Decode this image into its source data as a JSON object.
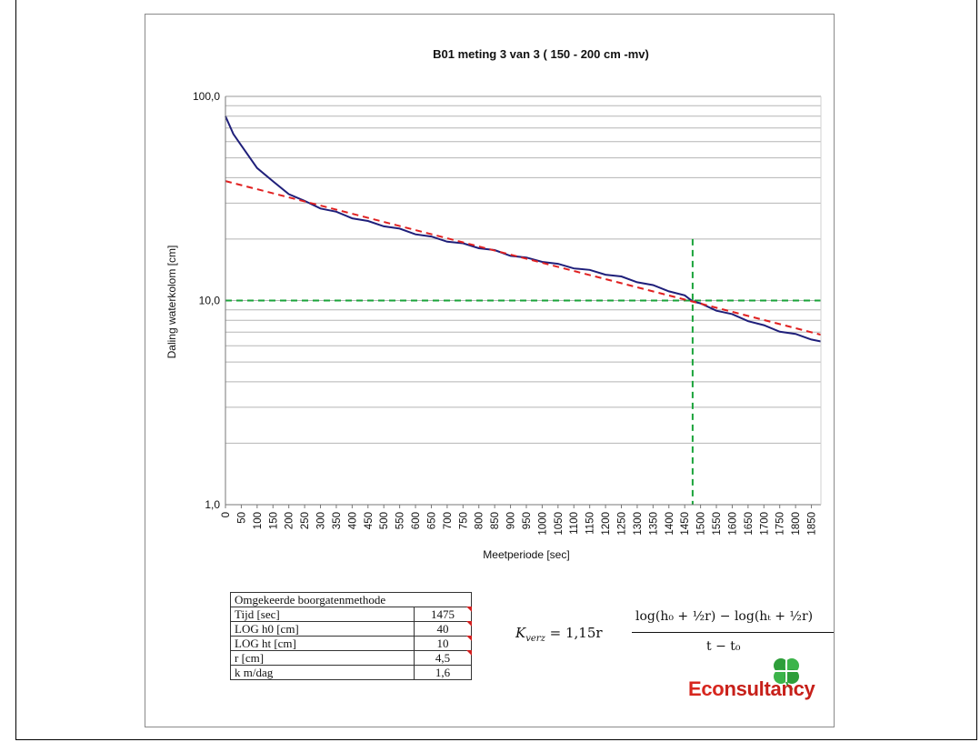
{
  "chart_data": {
    "type": "line",
    "title": "B01 meting 3 van 3 ( 150 - 200 cm -mv)",
    "xlabel": "Meetperiode [sec]",
    "ylabel": "Daling waterkolom [cm]",
    "yscale": "log",
    "ylim": [
      1,
      100
    ],
    "xlim": [
      0,
      1880
    ],
    "x_ticks": [
      "0",
      "50",
      "100",
      "150",
      "200",
      "250",
      "300",
      "350",
      "400",
      "450",
      "500",
      "550",
      "600",
      "650",
      "700",
      "750",
      "800",
      "850",
      "900",
      "950",
      "1000",
      "1050",
      "1100",
      "1150",
      "1200",
      "1250",
      "1300",
      "1350",
      "1400",
      "1450",
      "1500",
      "1550",
      "1600",
      "1650",
      "1700",
      "1750",
      "1800",
      "1850"
    ],
    "y_tick_labels": [
      "1,0",
      "10,0",
      "100,0"
    ],
    "grid": "horizontal",
    "series": [
      {
        "color": "#1f1f7a",
        "style": "solid",
        "x": [
          0,
          25,
          50,
          100,
          150,
          200,
          250,
          300,
          350,
          400,
          450,
          500,
          550,
          600,
          650,
          700,
          750,
          800,
          850,
          900,
          950,
          1000,
          1050,
          1100,
          1150,
          1200,
          1250,
          1300,
          1350,
          1400,
          1450,
          1475,
          1500,
          1550,
          1600,
          1650,
          1700,
          1750,
          1800,
          1850,
          1880
        ],
        "y": [
          80,
          66,
          57,
          45,
          38,
          33.5,
          30.5,
          28.5,
          27,
          25.5,
          24.3,
          23.3,
          22.3,
          21.3,
          20.4,
          19.6,
          18.9,
          18.2,
          17.5,
          16.7,
          16.1,
          15.6,
          15.0,
          14.5,
          14.0,
          13.5,
          13.0,
          12.4,
          11.8,
          11.2,
          10.5,
          10.0,
          9.6,
          9.0,
          8.5,
          8.0,
          7.5,
          7.1,
          6.8,
          6.5,
          6.3
        ]
      },
      {
        "color": "#e02020",
        "style": "dashed",
        "x": [
          0,
          1880
        ],
        "y": [
          38.5,
          6.8
        ]
      }
    ],
    "reference_lines": [
      {
        "orientation": "horizontal",
        "y": 10,
        "color": "#1aa33a"
      },
      {
        "orientation": "vertical",
        "x": 1475,
        "y_top": 20,
        "color": "#1aa33a"
      }
    ]
  },
  "table": {
    "header": "Omgekeerde boorgatenmethode",
    "rows": [
      {
        "label": "Tijd [sec]",
        "value": "1475",
        "flag": true
      },
      {
        "label": "LOG h0 [cm]",
        "value": "40",
        "flag": true
      },
      {
        "label": "LOG ht [cm]",
        "value": "10",
        "flag": true
      },
      {
        "label": "r [cm]",
        "value": "4,5",
        "flag": true
      },
      {
        "label": "k m/dag",
        "value": "1,6",
        "flag": false
      }
    ]
  },
  "formula": {
    "lhs": "K",
    "lhs_sub": "verz",
    "equals": "= 1,15r",
    "numerator": "log(h₀ + ½r) − log(hₜ + ½r)",
    "denominator": "t − t₀"
  },
  "logo": {
    "text_prefix": "Eco",
    "text_suffix": "nsultancy",
    "accent_color": "#2e9e3a",
    "brand_color": "#d7261e"
  }
}
